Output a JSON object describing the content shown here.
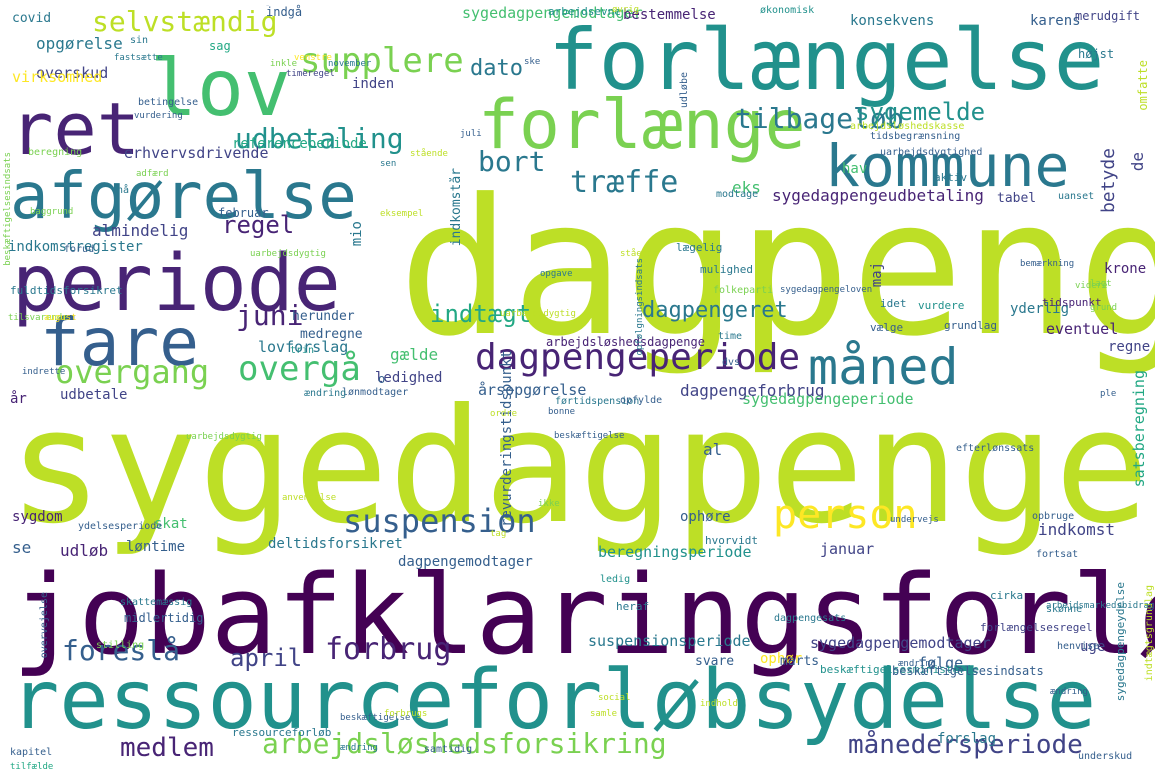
{
  "palette": {
    "background": "#ffffff",
    "c1": "#440154",
    "c2": "#482475",
    "c3": "#414487",
    "c4": "#355f8d",
    "c5": "#2a788e",
    "c6": "#21918c",
    "c7": "#22a884",
    "c8": "#44bf70",
    "c9": "#7ad151",
    "c10": "#bddf26",
    "c11": "#fde725"
  },
  "words": [
    {
      "text": "dagpenge",
      "c": "c10"
    },
    {
      "text": "sygedagpenge",
      "c": "c10"
    },
    {
      "text": "jobafklaringsforløb",
      "c": "c1"
    },
    {
      "text": "ressourceforløbsydelse",
      "c": "c6"
    },
    {
      "text": "forlængelse",
      "c": "c6"
    },
    {
      "text": "forlænge",
      "c": "c9"
    },
    {
      "text": "kommune",
      "c": "c5"
    },
    {
      "text": "lov",
      "c": "c8"
    },
    {
      "text": "ret",
      "c": "c2"
    },
    {
      "text": "afgørelse",
      "c": "c5"
    },
    {
      "text": "periode",
      "c": "c2"
    },
    {
      "text": "fare",
      "c": "c4"
    },
    {
      "text": "måned",
      "c": "c5"
    },
    {
      "text": "dagpengeperiode",
      "c": "c2"
    },
    {
      "text": "supplere",
      "c": "c9"
    },
    {
      "text": "udbetaling",
      "c": "c6"
    },
    {
      "text": "selvstændig",
      "c": "c10"
    },
    {
      "text": "tilbageløb",
      "c": "c5"
    },
    {
      "text": "sygemelde",
      "c": "c6"
    },
    {
      "text": "træffe",
      "c": "c5"
    },
    {
      "text": "bort",
      "c": "c5"
    },
    {
      "text": "dato",
      "c": "c5"
    },
    {
      "text": "regel",
      "c": "c2"
    },
    {
      "text": "juni",
      "c": "c2"
    },
    {
      "text": "indtægt",
      "c": "c7"
    },
    {
      "text": "dagpengeret",
      "c": "c5"
    },
    {
      "text": "overgang",
      "c": "c9"
    },
    {
      "text": "overgå",
      "c": "c8"
    },
    {
      "text": "suspension",
      "c": "c4"
    },
    {
      "text": "person",
      "c": "c11"
    },
    {
      "text": "forbrug",
      "c": "c2"
    },
    {
      "text": "april",
      "c": "c3"
    },
    {
      "text": "foreslå",
      "c": "c4"
    },
    {
      "text": "medlem",
      "c": "c2"
    },
    {
      "text": "arbejdsløshedsforsikring",
      "c": "c9"
    },
    {
      "text": "månedersperiode",
      "c": "c3"
    },
    {
      "text": "sygedagpengeudbetaling",
      "c": "c2"
    },
    {
      "text": "sygedagpengemodtager",
      "c": "c8"
    },
    {
      "text": "sygedagpengeperiode",
      "c": "c8"
    },
    {
      "text": "dagpengeforbrug",
      "c": "c3"
    },
    {
      "text": "årsopgørelse",
      "c": "c4"
    },
    {
      "text": "beregningsperiode",
      "c": "c6"
    },
    {
      "text": "suspensionsperiode",
      "c": "c5"
    },
    {
      "text": "dagpengemodtager",
      "c": "c4"
    },
    {
      "text": "sygedagpengemodtager",
      "c": "c3"
    },
    {
      "text": "deltidsforsikret",
      "c": "c5"
    },
    {
      "text": "referenceperiode",
      "c": "c7"
    },
    {
      "text": "erhvervsdrivende",
      "c": "c3"
    },
    {
      "text": "almindelig",
      "c": "c3"
    },
    {
      "text": "indkomstregister",
      "c": "c5"
    },
    {
      "text": "opgørelse",
      "c": "c5"
    },
    {
      "text": "overskud",
      "c": "c3"
    },
    {
      "text": "lovforslag",
      "c": "c5"
    },
    {
      "text": "udbetale",
      "c": "c3"
    },
    {
      "text": "ledighed",
      "c": "c3"
    },
    {
      "text": "gælde",
      "c": "c8"
    },
    {
      "text": "satsberegning",
      "c": "c7"
    },
    {
      "text": "betyde",
      "c": "c3"
    },
    {
      "text": "konsekvens",
      "c": "c5"
    },
    {
      "text": "karens",
      "c": "c4"
    },
    {
      "text": "bestemmelse",
      "c": "c2"
    },
    {
      "text": "sygdom",
      "c": "c2"
    },
    {
      "text": "skat",
      "c": "c8"
    },
    {
      "text": "udløb",
      "c": "c2"
    },
    {
      "text": "løntime",
      "c": "c4"
    },
    {
      "text": "ophøre",
      "c": "c4"
    },
    {
      "text": "indkomst",
      "c": "c3"
    },
    {
      "text": "januar",
      "c": "c3"
    },
    {
      "text": "forslag",
      "c": "c5"
    },
    {
      "text": "følge",
      "c": "c4"
    },
    {
      "text": "uge",
      "c": "c3"
    },
    {
      "text": "ophør",
      "c": "c11"
    },
    {
      "text": "svare",
      "c": "c4"
    },
    {
      "text": "marts",
      "c": "c4"
    },
    {
      "text": "eventuel",
      "c": "c2"
    },
    {
      "text": "yderlig",
      "c": "c5"
    },
    {
      "text": "krone",
      "c": "c2"
    },
    {
      "text": "regne",
      "c": "c3"
    },
    {
      "text": "tabel",
      "c": "c3"
    },
    {
      "text": "inden",
      "c": "c3"
    },
    {
      "text": "eks",
      "c": "c8"
    },
    {
      "text": "hav",
      "c": "c8"
    },
    {
      "text": "mio",
      "c": "c5"
    },
    {
      "text": "maj",
      "c": "c3"
    },
    {
      "text": "de",
      "c": "c3"
    },
    {
      "text": "år",
      "c": "c2"
    },
    {
      "text": "se",
      "c": "c4"
    },
    {
      "text": "al",
      "c": "c4"
    },
    {
      "text": "o",
      "c": "c4"
    },
    {
      "text": "medregne",
      "c": "c4"
    },
    {
      "text": "herunder",
      "c": "c4"
    },
    {
      "text": "covid",
      "c": "c5"
    },
    {
      "text": "sag",
      "c": "c7"
    },
    {
      "text": "indgå",
      "c": "c4"
    },
    {
      "text": "indgå",
      "c": "c4"
    },
    {
      "text": "højst",
      "c": "c5"
    },
    {
      "text": "merudgift",
      "c": "c3"
    },
    {
      "text": "omfatte",
      "c": "c10"
    },
    {
      "text": "virksomhed",
      "c": "c11"
    },
    {
      "text": "indkomstår",
      "c": "c5"
    },
    {
      "text": "revurderingstidspunkt",
      "c": "c4"
    },
    {
      "text": "arbejdsløshedsdagpenge",
      "c": "c2"
    },
    {
      "text": "sygedagpengeydelse",
      "c": "c5"
    },
    {
      "text": "forlængelsesregel",
      "c": "c3"
    },
    {
      "text": "beskæftigelsesministerie",
      "c": "c6"
    },
    {
      "text": "beskæftigelsesindsats",
      "c": "c4"
    },
    {
      "text": "ressourceforløb",
      "c": "c5"
    },
    {
      "text": "indtægtsgrundlag",
      "c": "c10"
    },
    {
      "text": "midlertidig",
      "c": "c4"
    },
    {
      "text": "skattemæssig",
      "c": "c5"
    },
    {
      "text": "arbejdsevne",
      "c": "c6"
    },
    {
      "text": "økonomisk",
      "c": "c6"
    },
    {
      "text": "udløbe",
      "c": "c4"
    },
    {
      "text": "tidsbegrænsning",
      "c": "c4"
    },
    {
      "text": "arbejdsløshedskasse",
      "c": "c10"
    },
    {
      "text": "uarbejdsdygtighed",
      "c": "c4"
    },
    {
      "text": "tidspunkt",
      "c": "c2"
    },
    {
      "text": "grundlag",
      "c": "c4"
    },
    {
      "text": "vælge",
      "c": "c4"
    },
    {
      "text": "vurdere",
      "c": "c6"
    },
    {
      "text": "idet",
      "c": "c5"
    },
    {
      "text": "lægelig",
      "c": "c5"
    },
    {
      "text": "mulighed",
      "c": "c5"
    },
    {
      "text": "modtage",
      "c": "c5"
    },
    {
      "text": "uanset",
      "c": "c5"
    },
    {
      "text": "folkeparti",
      "c": "c9"
    },
    {
      "text": "aktiv",
      "c": "c5"
    },
    {
      "text": "time",
      "c": "c5"
    },
    {
      "text": "februar",
      "c": "c4"
    },
    {
      "text": "forud",
      "c": "c4"
    },
    {
      "text": "fuldtidsforsikret",
      "c": "c5"
    },
    {
      "text": "lønmodtager",
      "c": "c4"
    },
    {
      "text": "ændring",
      "c": "c5"
    },
    {
      "text": "hvorvidt",
      "c": "c5"
    },
    {
      "text": "fortsat",
      "c": "c4"
    },
    {
      "text": "ledig",
      "c": "c6"
    },
    {
      "text": "heraf",
      "c": "c5"
    },
    {
      "text": "skønne",
      "c": "c5"
    },
    {
      "text": "cirka",
      "c": "c5"
    },
    {
      "text": "opbruge",
      "c": "c4"
    },
    {
      "text": "henvise",
      "c": "c4"
    },
    {
      "text": "dagpengesats",
      "c": "c5"
    },
    {
      "text": "efterlønssats",
      "c": "c4"
    },
    {
      "text": "underskud",
      "c": "c4"
    },
    {
      "text": "samtidig",
      "c": "c4"
    },
    {
      "text": "kapitel",
      "c": "c4"
    },
    {
      "text": "tilfælde",
      "c": "c7"
    },
    {
      "text": "stilling",
      "c": "c9"
    },
    {
      "text": "ydelsesperiode",
      "c": "c4"
    },
    {
      "text": "overvejelse",
      "c": "c4"
    },
    {
      "text": "førtidspension",
      "c": "c5"
    },
    {
      "text": "opfylde",
      "c": "c4"
    },
    {
      "text": "dvs",
      "c": "c4"
    },
    {
      "text": "trin",
      "c": "c6"
    },
    {
      "text": "fastsætte",
      "c": "c5"
    },
    {
      "text": "timeregel",
      "c": "c3"
    },
    {
      "text": "betingelse",
      "c": "c4"
    },
    {
      "text": "vurdering",
      "c": "c4"
    },
    {
      "text": "nå",
      "c": "c5"
    },
    {
      "text": "sin",
      "c": "c5"
    },
    {
      "text": "uarbejdsdygtig",
      "c": "c9"
    },
    {
      "text": "beregning",
      "c": "c9"
    },
    {
      "text": "grund",
      "c": "c9"
    },
    {
      "text": "videre",
      "c": "c9"
    },
    {
      "text": "bemærkning",
      "c": "c4"
    },
    {
      "text": "opfølgningsindsats",
      "c": "c5"
    },
    {
      "text": "adfærd",
      "c": "c9"
    },
    {
      "text": "øvrig",
      "c": "c10"
    },
    {
      "text": "inkle",
      "c": "c9"
    },
    {
      "text": "venstre",
      "c": "c11"
    },
    {
      "text": "november",
      "c": "c5"
    },
    {
      "text": "ske",
      "c": "c4"
    },
    {
      "text": "beskæftigelsesindsats",
      "c": "c9"
    },
    {
      "text": "baggrund",
      "c": "c9"
    },
    {
      "text": "eksempel",
      "c": "c10"
    },
    {
      "text": "sygedagpengeloven",
      "c": "c4"
    },
    {
      "text": "anvendelse",
      "c": "c10"
    },
    {
      "text": "arbejdsmarkedsbidrag",
      "c": "c5"
    },
    {
      "text": "social",
      "c": "c10"
    },
    {
      "text": "bonne",
      "c": "c4"
    },
    {
      "text": "beskæftigelse",
      "c": "c4"
    },
    {
      "text": "beskæftigelse",
      "c": "c4"
    },
    {
      "text": "forbrugs",
      "c": "c10"
    },
    {
      "text": "ændring",
      "c": "c5"
    },
    {
      "text": "ikke",
      "c": "c9"
    },
    {
      "text": "tag",
      "c": "c10"
    },
    {
      "text": "samle",
      "c": "c10"
    },
    {
      "text": "undervejs",
      "c": "c4"
    },
    {
      "text": "tilsvarende",
      "c": "c9"
    },
    {
      "text": "august",
      "c": "c11"
    },
    {
      "text": "indrette",
      "c": "c4"
    },
    {
      "text": "ordre",
      "c": "c10"
    },
    {
      "text": "ændring",
      "c": "c4"
    },
    {
      "text": "ændring",
      "c": "c4"
    },
    {
      "text": "uarbejdsdygtig",
      "c": "c10"
    },
    {
      "text": "ple",
      "c": "c4"
    },
    {
      "text": "sen",
      "c": "c5"
    },
    {
      "text": "juli",
      "c": "c4"
    },
    {
      "text": "stående",
      "c": "c10"
    },
    {
      "text": "uarbejdsdygtig",
      "c": "c9"
    },
    {
      "text": "opgave",
      "c": "c5"
    },
    {
      "text": "stående",
      "c": "c10"
    },
    {
      "text": "lagt",
      "c": "c9"
    },
    {
      "text": "indhold",
      "c": "c10"
    },
    {
      "text": "bragt",
      "c": "c9"
    },
    {
      "text": "stort",
      "c": "c10"
    },
    {
      "text": "stadig",
      "c": "c9"
    }
  ]
}
